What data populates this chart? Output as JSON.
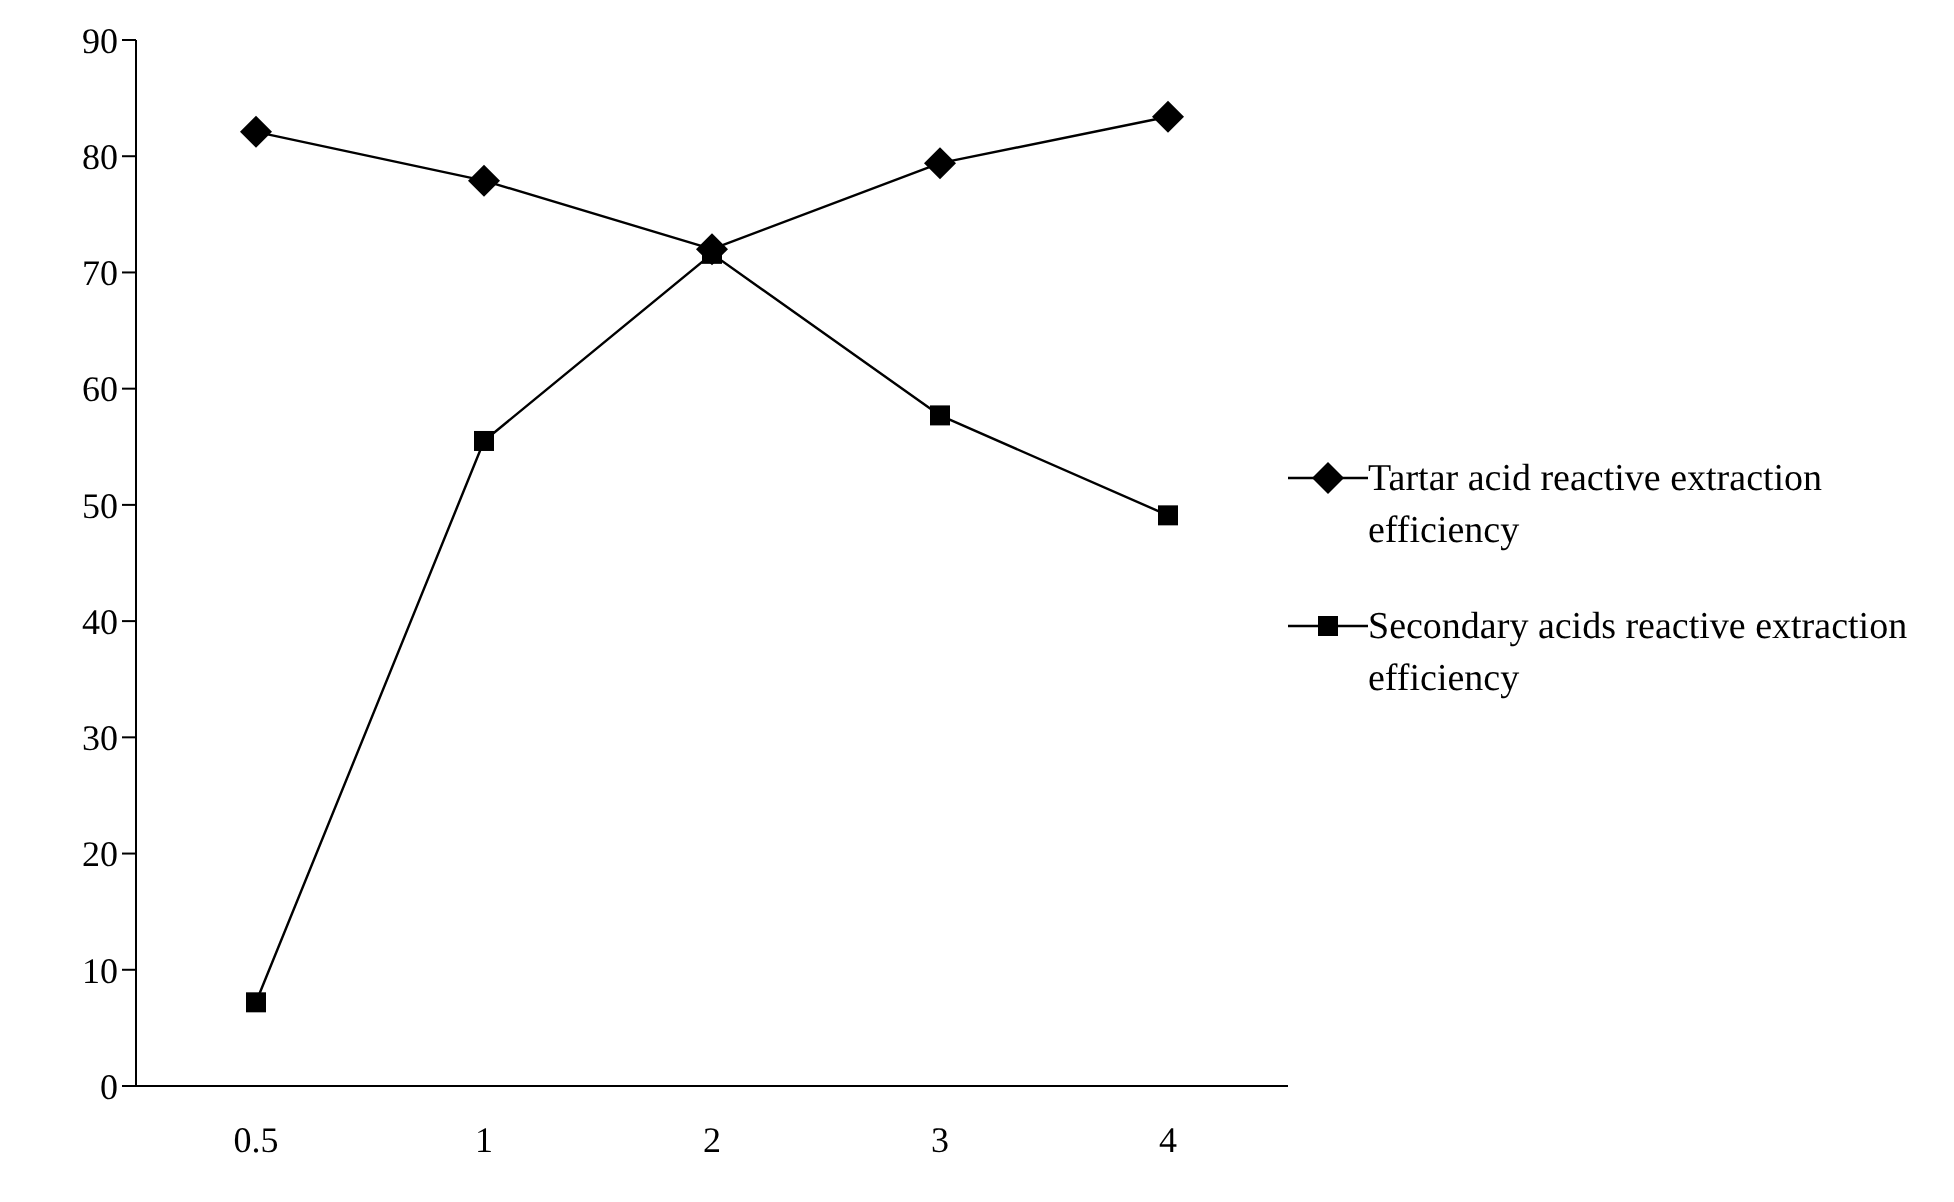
{
  "chart_data": {
    "type": "line",
    "categories": [
      "0.5",
      "1",
      "2",
      "3",
      "4"
    ],
    "series": [
      {
        "name": "Tartar acid reactive extraction efficiency",
        "color": "#000000",
        "marker": "diamond",
        "values": [
          82.1,
          77.9,
          72.0,
          79.4,
          83.4
        ]
      },
      {
        "name": "Secondary acids reactive extraction efficiency",
        "color": "#000000",
        "marker": "square",
        "values": [
          7.2,
          55.5,
          71.6,
          57.7,
          49.1
        ]
      }
    ],
    "ylim": [
      0,
      90
    ],
    "yticks": [
      0,
      10,
      20,
      30,
      40,
      50,
      60,
      70,
      80,
      90
    ],
    "grid": false,
    "legend": "right",
    "line_style": "solid"
  }
}
